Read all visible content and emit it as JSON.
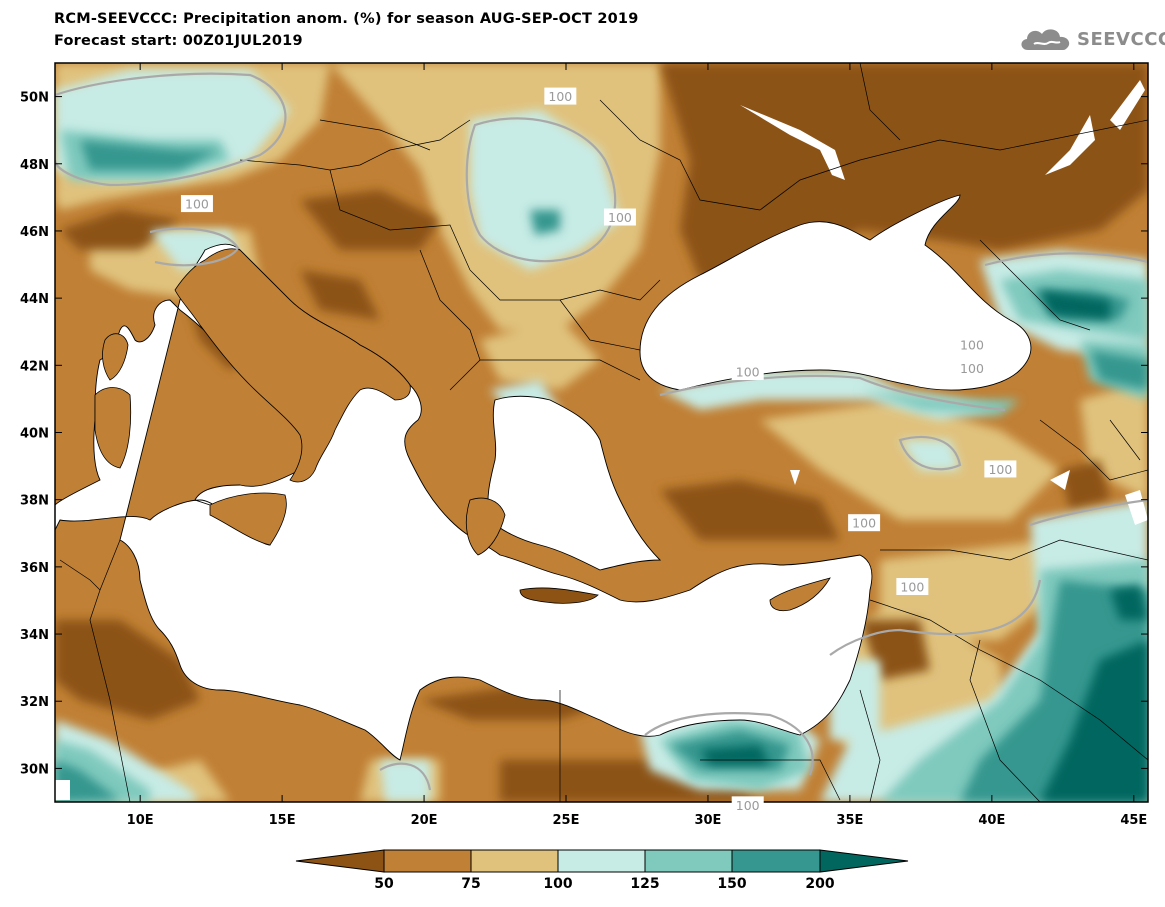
{
  "title": {
    "line1": "RCM-SEEVCCC: Precipitation anom. (%) for season AUG-SEP-OCT 2019",
    "line2": "Forecast start: 00Z01JUL2019"
  },
  "logo": {
    "text": "SEEVCCC",
    "icon": "cloud-icon",
    "color": "#8c8c8c"
  },
  "map": {
    "projection": "lat-lon",
    "lon_range": [
      7,
      45.5
    ],
    "lat_range": [
      29,
      51
    ],
    "x_ticks": [
      "10E",
      "15E",
      "20E",
      "25E",
      "30E",
      "35E",
      "40E",
      "45E"
    ],
    "y_ticks": [
      "30N",
      "32N",
      "34N",
      "36N",
      "38N",
      "40N",
      "42N",
      "44N",
      "46N",
      "48N",
      "50N"
    ],
    "contour_value_label": "100",
    "contour_label_positions_deg": [
      [
        24.8,
        50.0
      ],
      [
        12.0,
        46.8
      ],
      [
        26.9,
        46.4
      ],
      [
        40.3,
        38.9
      ],
      [
        39.3,
        42.6
      ],
      [
        39.3,
        41.9
      ],
      [
        31.4,
        41.8
      ],
      [
        35.5,
        37.3
      ],
      [
        37.2,
        35.4
      ],
      [
        31.4,
        28.9
      ]
    ]
  },
  "legend": {
    "labels": [
      "50",
      "75",
      "100",
      "125",
      "150",
      "200"
    ],
    "colors": [
      "#8c5314",
      "#c08035",
      "#e0c27d",
      "#c7ebe5",
      "#7fc9bd",
      "#35978f",
      "#01665e"
    ]
  }
}
